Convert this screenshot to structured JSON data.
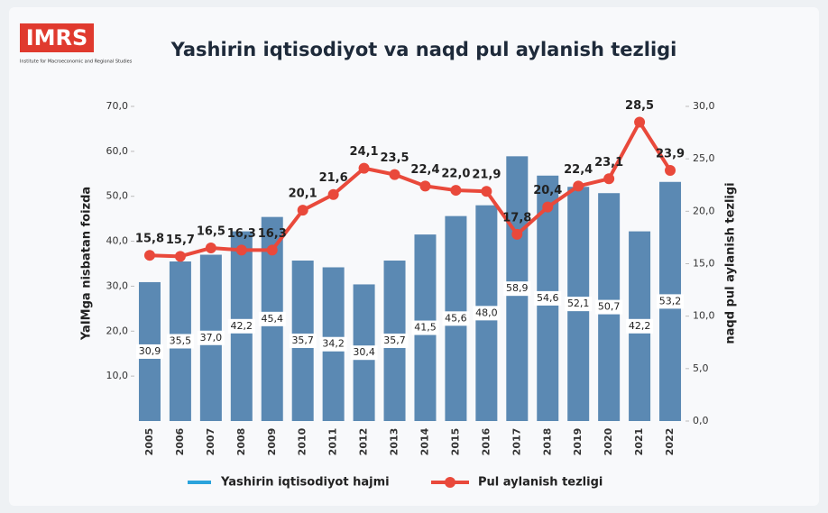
{
  "chart_data": {
    "type": "bar-line",
    "logo": "IMRS",
    "logo_subtitle": "Institute for Macroeconomic and Regional Studies",
    "title": "Yashirin iqtisodiyot va naqd pul aylanish tezligi",
    "y_label": "YaIMga nisbatan foizda",
    "y2_label": "naqd pul aylanish tezligi",
    "categories": [
      "2005",
      "2006",
      "2007",
      "2008",
      "2009",
      "2010",
      "2011",
      "2012",
      "2013",
      "2014",
      "2015",
      "2016",
      "2017",
      "2018",
      "2019",
      "2020",
      "2021",
      "2022"
    ],
    "ylim": [
      0,
      70
    ],
    "yticks": [
      {
        "value": 10,
        "label": "10,0"
      },
      {
        "value": 20,
        "label": "20,0"
      },
      {
        "value": 30,
        "label": "30,0"
      },
      {
        "value": 40,
        "label": "40,0"
      },
      {
        "value": 50,
        "label": "50,0"
      },
      {
        "value": 60,
        "label": "60,0"
      },
      {
        "value": 70,
        "label": "70,0"
      }
    ],
    "y2lim": [
      0,
      30
    ],
    "y2ticks": [
      {
        "value": 0,
        "label": "0,0"
      },
      {
        "value": 5,
        "label": "5,0"
      },
      {
        "value": 10,
        "label": "10,0"
      },
      {
        "value": 15,
        "label": "15,0"
      },
      {
        "value": 20,
        "label": "20,0"
      },
      {
        "value": 25,
        "label": "25,0"
      },
      {
        "value": 30,
        "label": "30,0"
      }
    ],
    "series": [
      {
        "name": "Yashirin iqtisodiyot hajmi",
        "kind": "bar",
        "color": "#5b89b3",
        "legend_color": "#2aa3dc",
        "values": [
          30.9,
          35.5,
          37.0,
          42.2,
          45.4,
          35.7,
          34.2,
          30.4,
          35.7,
          41.5,
          45.6,
          48.0,
          58.9,
          54.6,
          52.1,
          50.7,
          42.2,
          53.2
        ],
        "value_labels": [
          "30,9",
          "35,5",
          "37,0",
          "42,2",
          "45,4",
          "35,7",
          "34,2",
          "30,4",
          "35,7",
          "41,5",
          "45,6",
          "48,0",
          "58,9",
          "54,6",
          "52,1",
          "50,7",
          "42,2",
          "53,2"
        ]
      },
      {
        "name": "Pul aylanish tezligi",
        "kind": "line",
        "axis": "y2",
        "color": "#e9493b",
        "values": [
          15.8,
          15.7,
          16.5,
          16.3,
          16.3,
          20.1,
          21.6,
          24.1,
          23.5,
          22.4,
          22.0,
          21.9,
          17.8,
          20.4,
          22.4,
          23.1,
          28.5,
          23.9
        ],
        "value_labels": [
          "15,8",
          "15,7",
          "16,5",
          "16,3",
          "16,3",
          "20,1",
          "21,6",
          "24,1",
          "23,5",
          "22,4",
          "22,0",
          "21,9",
          "17,8",
          "20,4",
          "22,4",
          "23,1",
          "28,5",
          "23,9"
        ]
      }
    ]
  }
}
